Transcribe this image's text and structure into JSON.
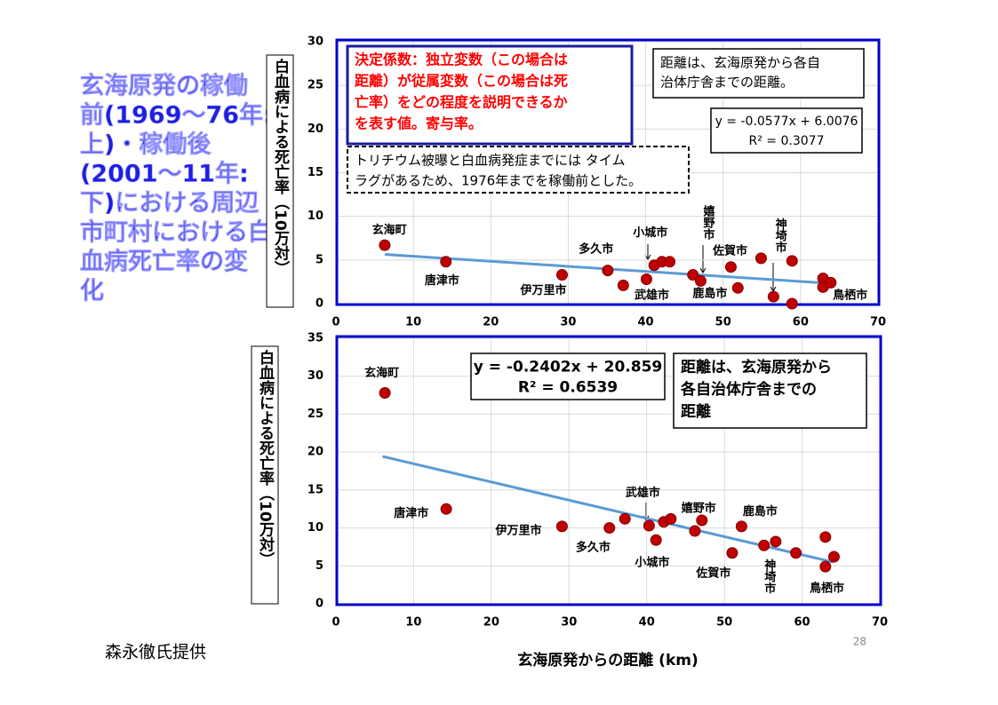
{
  "title_lines": [
    "玄海原発の稼働",
    "前(1969～76年:",
    "上)・稼働後",
    "(2001～11年:",
    "下)における周辺",
    "市町村における白",
    "血病死亡率の変",
    "化"
  ],
  "credit": "森永徹氏提供",
  "page_number": "28",
  "chart_data": [
    {
      "type": "scatter",
      "ylabel": "白血病による死亡率（10万対）",
      "color": "#c00000",
      "x": [
        6.3,
        14.2,
        29.2,
        35.1,
        37.1,
        40.1,
        41.1,
        42.1,
        43.1,
        46.1,
        47.1,
        51.0,
        51.9,
        54.9,
        56.5,
        58.9,
        58.9,
        62.9,
        62.9,
        63.9
      ],
      "y": [
        6.7,
        4.8,
        3.3,
        3.8,
        2.1,
        2.8,
        4.4,
        4.8,
        4.8,
        3.3,
        2.6,
        4.2,
        1.8,
        5.2,
        0.8,
        4.9,
        0,
        2.9,
        1.9,
        2.4
      ],
      "xlim": [
        0,
        70
      ],
      "xticks": [
        0,
        10,
        20,
        30,
        40,
        50,
        60,
        70
      ],
      "ylim": [
        0,
        30
      ],
      "yticks": [
        0,
        5,
        10,
        15,
        20,
        25,
        30
      ],
      "grid": true,
      "trendline": {
        "color": "#5b9bd5",
        "x": [
          6.3,
          64
        ],
        "y": [
          5.64,
          2.31
        ],
        "equation": "y = -0.0577x + 6.0076",
        "r2": "R² = 0.3077"
      },
      "text_boxes": [
        {
          "lines": [
            "決定係数：独立変数（この場合は",
            "距離）が従属変数（この場合は死",
            "亡率）をどの程度を説明できるか",
            "を表す値。寄与率。"
          ]
        },
        {
          "lines": [
            "距離は、玄海原発から各自",
            "治体庁舎までの距離。"
          ]
        },
        {
          "lines": [
            "トリチウム被曝と白血病発症までには タイム",
            "ラグがあるため、1976年までを稼働前とした。"
          ]
        }
      ],
      "annotations": [
        {
          "text": "玄海町",
          "x": 6.9,
          "y": 8.4
        },
        {
          "text": "唐津市",
          "x": 13.7,
          "y": 2.6
        },
        {
          "text": "伊万里市",
          "x": 26.8,
          "y": 1.5
        },
        {
          "text": "多久市",
          "x": 33.6,
          "y": 6.2
        },
        {
          "text": "小城市",
          "x": 40.6,
          "y": 8.1
        },
        {
          "text": "武雄市",
          "x": 40.8,
          "y": 0.9
        },
        {
          "text": "嬉野市",
          "x": 47.4,
          "y": 11.3,
          "vertical": true
        },
        {
          "text": "佐賀市",
          "x": 50.9,
          "y": 6.0
        },
        {
          "text": "鹿島市",
          "x": 48.3,
          "y": 1.1
        },
        {
          "text": "神埼市",
          "x": 56.7,
          "y": 9.8,
          "vertical": true
        },
        {
          "text": "鳥栖市",
          "x": 66.4,
          "y": 0.9
        }
      ]
    },
    {
      "type": "scatter",
      "ylabel": "白血病による死亡率（10万対）",
      "xlabel": "玄海原発からの距離 (km)",
      "color": "#c00000",
      "x": [
        6.3,
        14.2,
        29.1,
        35.2,
        37.2,
        40.3,
        41.2,
        42.2,
        43.1,
        46.2,
        47.1,
        51.0,
        52.2,
        55.1,
        56.6,
        59.2,
        63.0,
        63.0,
        64.1
      ],
      "y": [
        27.8,
        12.5,
        10.2,
        10.0,
        11.2,
        10.3,
        8.4,
        10.8,
        11.2,
        9.6,
        11.0,
        6.7,
        10.2,
        7.7,
        8.2,
        6.7,
        8.8,
        4.9,
        6.2
      ],
      "xlim": [
        0,
        70
      ],
      "xticks": [
        0,
        10,
        20,
        30,
        40,
        50,
        60,
        70
      ],
      "ylim": [
        0,
        35
      ],
      "yticks": [
        0,
        5,
        10,
        15,
        20,
        25,
        30,
        35
      ],
      "grid": true,
      "trendline": {
        "color": "#5b9bd5",
        "x": [
          6,
          64
        ],
        "y": [
          19.42,
          5.49
        ],
        "equation": "y = -0.2402x + 20.859",
        "r2": "R² = 0.6539"
      },
      "text_boxes": [
        {
          "lines": [
            "距離は、玄海原発から",
            "各自治体庁舎までの",
            "距離"
          ]
        }
      ],
      "annotations": [
        {
          "text": "玄海町",
          "x": 5.9,
          "y": 30.4
        },
        {
          "text": "唐津市",
          "x": 9.7,
          "y": 11.9
        },
        {
          "text": "伊万里市",
          "x": 23.5,
          "y": 9.6
        },
        {
          "text": "多久市",
          "x": 33.1,
          "y": 7.4
        },
        {
          "text": "武雄市",
          "x": 39.5,
          "y": 14.6
        },
        {
          "text": "小城市",
          "x": 40.7,
          "y": 5.4
        },
        {
          "text": "嬉野市",
          "x": 46.7,
          "y": 12.5
        },
        {
          "text": "佐賀市",
          "x": 48.6,
          "y": 4.0
        },
        {
          "text": "鹿島市",
          "x": 54.6,
          "y": 12.1
        },
        {
          "text": "神埼市",
          "x": 55.1,
          "y": 5.9,
          "vertical": true
        },
        {
          "text": "鳥栖市",
          "x": 63.2,
          "y": 2.0
        }
      ]
    }
  ]
}
